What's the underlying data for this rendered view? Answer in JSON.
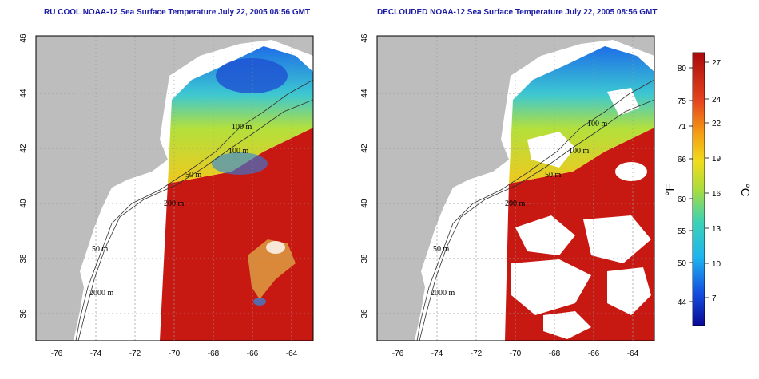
{
  "titles": {
    "left": "RU COOL NOAA-12 Sea Surface Temperature July 22, 2005 08:56 GMT",
    "right": "DECLOUDED NOAA-12 Sea Surface Temperature July 22, 2005 08:56 GMT"
  },
  "map_axes": {
    "lon_ticks": [
      "-76",
      "-74",
      "-72",
      "-70",
      "-68",
      "-66",
      "-64"
    ],
    "lat_ticks": [
      "46",
      "44",
      "42",
      "40",
      "38",
      "36"
    ]
  },
  "isobath_labels": [
    "100 m",
    "100 m",
    "50 m",
    "200 m",
    "50 m",
    "2000 m"
  ],
  "colorbar": {
    "fahrenheit_ticks": [
      "80",
      "75",
      "71",
      "66",
      "60",
      "55",
      "50",
      "44"
    ],
    "celsius_ticks": [
      "27",
      "24",
      "22",
      "19",
      "16",
      "13",
      "10",
      "7"
    ],
    "unit_f": "°F",
    "unit_c": "°C"
  },
  "colors": {
    "land": "#bdbdbd",
    "title": "#1a1aa6",
    "warm": "#c81812",
    "cold": "#1030c8"
  }
}
